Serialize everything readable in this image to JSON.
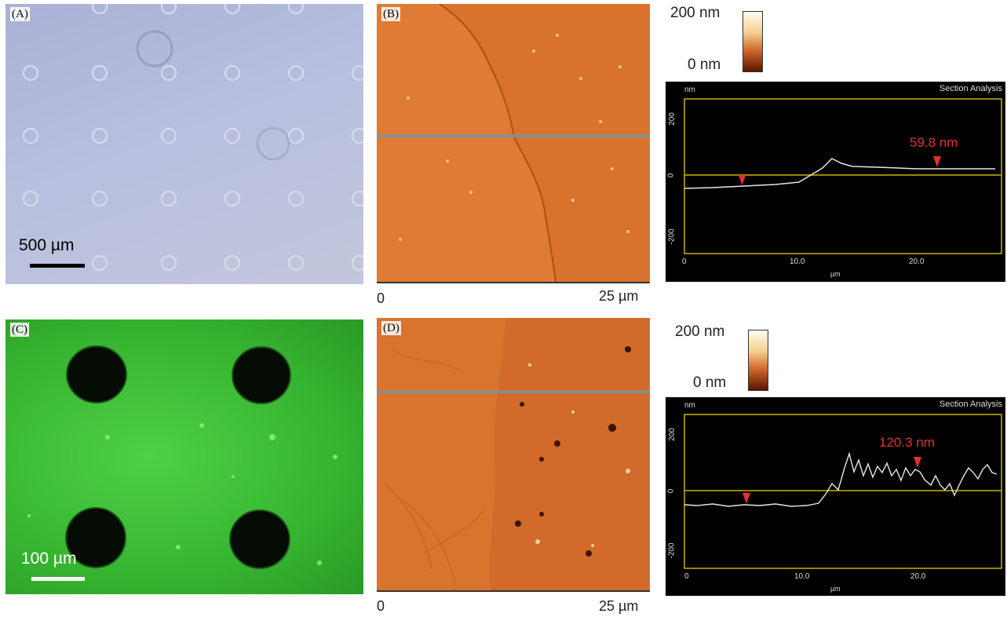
{
  "panels": {
    "a": {
      "label": "(A)",
      "scale_text": "500 µm"
    },
    "b": {
      "label": "(B)",
      "axis_start": "0",
      "axis_end": "25 µm"
    },
    "c": {
      "label": "(C)",
      "scale_text": "100 µm"
    },
    "d": {
      "label": "(D)",
      "axis_start": "0",
      "axis_end": "25 µm"
    }
  },
  "colorbars": {
    "top": {
      "max_label": "200 nm",
      "min_label": "0 nm"
    },
    "bottom": {
      "max_label": "200 nm",
      "min_label": "0 nm"
    }
  },
  "section_top": {
    "unit_top": "nm",
    "title": "Section Analysis",
    "annotation": "59.8 nm",
    "y_ticks": [
      "200",
      "0",
      "-200"
    ],
    "x_ticks": [
      "0",
      "10.0",
      "20.0"
    ],
    "x_unit": "µm"
  },
  "section_bottom": {
    "unit_top": "nm",
    "title": "Section Analysis",
    "annotation": "120.3 nm",
    "y_ticks": [
      "200",
      "0",
      "-200"
    ],
    "x_ticks": [
      "0",
      "10.0",
      "20.0"
    ],
    "x_unit": "µm"
  },
  "colors": {
    "afm_orange": "#d8722c",
    "fluor_green": "#3fc23a",
    "annotation_red": "#e23030",
    "frame_yellow": "#c8b400"
  }
}
